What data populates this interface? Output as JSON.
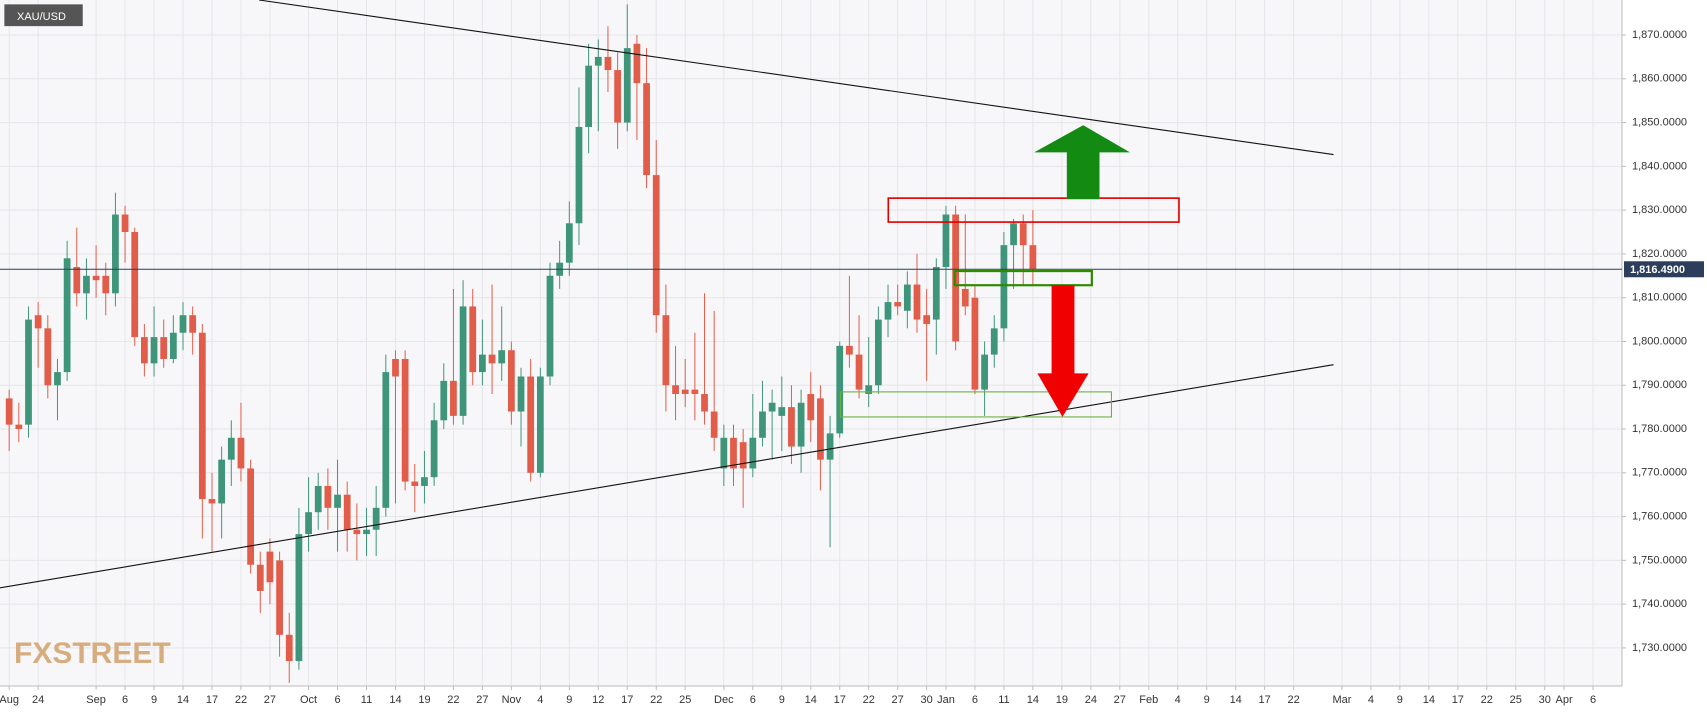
{
  "chart_data": {
    "type": "candlestick",
    "title": "XAU/USD",
    "watermark": "FXSTREET",
    "up_color": "#3f957a",
    "down_color": "#e25c4a",
    "grid": true,
    "x": [
      0,
      1,
      2,
      3,
      4,
      5,
      6,
      7,
      8,
      9,
      10,
      11,
      12,
      13,
      14,
      15,
      16,
      17,
      18,
      19,
      20,
      21,
      22,
      23,
      24,
      25,
      26,
      27,
      28,
      29,
      30,
      31,
      32,
      33,
      34,
      35,
      36,
      37,
      38,
      39,
      40,
      41,
      42,
      43,
      44,
      45,
      46,
      47,
      48,
      49,
      50,
      51,
      52,
      53,
      54,
      55,
      56,
      57,
      58,
      59,
      60,
      61,
      62,
      63,
      64,
      65,
      66,
      67,
      68,
      69,
      70,
      71,
      72,
      73,
      74,
      75,
      76,
      77,
      78,
      79,
      80,
      81,
      82,
      83,
      84,
      85,
      86,
      87,
      88,
      89,
      90,
      91,
      92,
      93,
      94,
      95,
      96,
      97,
      98,
      99,
      100,
      101,
      102,
      103,
      104,
      105,
      106
    ],
    "open": [
      1787,
      1781,
      1781,
      1806,
      1803,
      1790,
      1793,
      1817,
      1811,
      1815,
      1815,
      1811,
      1829,
      1825,
      1801,
      1795,
      1801,
      1796,
      1802,
      1806,
      1802,
      1764,
      1763,
      1773,
      1778,
      1771,
      1749,
      1752,
      1750,
      1733,
      1727,
      1756,
      1761,
      1767,
      1762,
      1765,
      1757,
      1756,
      1757,
      1762,
      1796,
      1796,
      1768,
      1767,
      1769,
      1782,
      1791,
      1783,
      1808,
      1793,
      1797,
      1795,
      1798,
      1784,
      1792,
      1770,
      1792,
      1815,
      1818,
      1827,
      1849,
      1863,
      1865,
      1862,
      1850,
      1868,
      1859,
      1838,
      1806,
      1790,
      1789,
      1789,
      1788,
      1784,
      1771,
      1778,
      1777,
      1771,
      1778,
      1784,
      1783,
      1785,
      1776,
      1788,
      1787,
      1773,
      1779,
      1799,
      1797,
      1788,
      1790,
      1805,
      1809,
      1807,
      1813,
      1806,
      1805,
      1817,
      1829,
      1812,
      1810,
      1789,
      1797,
      1803,
      1822,
      1827,
      1822
    ],
    "high": [
      1789,
      1786,
      1808,
      1809,
      1806,
      1796,
      1823,
      1826,
      1819,
      1822,
      1818,
      1834,
      1831,
      1826,
      1804,
      1808,
      1805,
      1806,
      1809,
      1808,
      1804,
      1770,
      1776,
      1782,
      1786,
      1773,
      1752,
      1755,
      1752,
      1738,
      1762,
      1769,
      1770,
      1771,
      1773,
      1768,
      1763,
      1762,
      1767,
      1797,
      1798,
      1798,
      1772,
      1775,
      1786,
      1795,
      1812,
      1814,
      1812,
      1805,
      1813,
      1808,
      1800,
      1794,
      1796,
      1794,
      1818,
      1823,
      1832,
      1858,
      1868,
      1869,
      1872,
      1866,
      1877,
      1870,
      1867,
      1846,
      1813,
      1799,
      1796,
      1802,
      1811,
      1807,
      1781,
      1781,
      1780,
      1788,
      1791,
      1789,
      1792,
      1790,
      1789,
      1793,
      1790,
      1783,
      1800,
      1815,
      1806,
      1801,
      1808,
      1813,
      1813,
      1816,
      1820,
      1812,
      1819,
      1831,
      1831,
      1829,
      1813,
      1800,
      1806,
      1825,
      1828,
      1829,
      1830
    ],
    "low": [
      1775,
      1777,
      1778,
      1794,
      1787,
      1782,
      1791,
      1808,
      1805,
      1810,
      1806,
      1808,
      1818,
      1799,
      1792,
      1792,
      1794,
      1795,
      1798,
      1797,
      1755,
      1752,
      1755,
      1767,
      1768,
      1747,
      1738,
      1740,
      1728,
      1722,
      1725,
      1752,
      1757,
      1757,
      1752,
      1752,
      1750,
      1751,
      1751,
      1760,
      1763,
      1766,
      1761,
      1763,
      1767,
      1780,
      1781,
      1781,
      1790,
      1790,
      1788,
      1791,
      1781,
      1776,
      1768,
      1769,
      1790,
      1812,
      1815,
      1822,
      1843,
      1848,
      1857,
      1844,
      1848,
      1846,
      1835,
      1802,
      1784,
      1782,
      1785,
      1782,
      1781,
      1775,
      1767,
      1767,
      1762,
      1769,
      1776,
      1773,
      1775,
      1772,
      1770,
      1777,
      1766,
      1753,
      1778,
      1794,
      1787,
      1785,
      1788,
      1801,
      1806,
      1803,
      1802,
      1791,
      1797,
      1812,
      1798,
      1806,
      1788,
      1783,
      1794,
      1800,
      1812,
      1813,
      1813
    ],
    "close": [
      1781,
      1780,
      1805,
      1803,
      1790,
      1793,
      1819,
      1811,
      1815,
      1814,
      1811,
      1829,
      1825,
      1801,
      1795,
      1801,
      1796,
      1802,
      1806,
      1802,
      1764,
      1763,
      1773,
      1778,
      1771,
      1749,
      1743,
      1745,
      1733,
      1727,
      1756,
      1761,
      1767,
      1762,
      1765,
      1757,
      1756,
      1757,
      1762,
      1793,
      1792,
      1768,
      1767,
      1769,
      1782,
      1791,
      1783,
      1808,
      1793,
      1797,
      1795,
      1798,
      1784,
      1792,
      1770,
      1792,
      1815,
      1818,
      1827,
      1849,
      1863,
      1865,
      1862,
      1850,
      1867,
      1859,
      1838,
      1806,
      1790,
      1788,
      1788,
      1788,
      1784,
      1778,
      1778,
      1771,
      1771,
      1778,
      1784,
      1786,
      1785,
      1776,
      1786,
      1782,
      1773,
      1779,
      1799,
      1797,
      1789,
      1790,
      1805,
      1809,
      1808,
      1813,
      1805,
      1804,
      1817,
      1829,
      1800,
      1808,
      1789,
      1797,
      1803,
      1822,
      1827,
      1822,
      1816.49
    ],
    "last_price": {
      "value": 1816.49,
      "label": "1,816.4900"
    },
    "xlim": [
      -0.95,
      167
    ],
    "xticks": [
      {
        "value": 0,
        "label": "Aug"
      },
      {
        "value": 3,
        "label": "24"
      },
      {
        "value": 9,
        "label": "Sep"
      },
      {
        "value": 12,
        "label": "6"
      },
      {
        "value": 15,
        "label": "9"
      },
      {
        "value": 18,
        "label": "14"
      },
      {
        "value": 21,
        "label": "17"
      },
      {
        "value": 24,
        "label": "22"
      },
      {
        "value": 27,
        "label": "27"
      },
      {
        "value": 31,
        "label": "Oct"
      },
      {
        "value": 34,
        "label": "6"
      },
      {
        "value": 37,
        "label": "11"
      },
      {
        "value": 40,
        "label": "14"
      },
      {
        "value": 43,
        "label": "19"
      },
      {
        "value": 46,
        "label": "22"
      },
      {
        "value": 49,
        "label": "27"
      },
      {
        "value": 52,
        "label": "Nov"
      },
      {
        "value": 55,
        "label": "4"
      },
      {
        "value": 58,
        "label": "9"
      },
      {
        "value": 61,
        "label": "12"
      },
      {
        "value": 64,
        "label": "17"
      },
      {
        "value": 67,
        "label": "22"
      },
      {
        "value": 70,
        "label": "25"
      },
      {
        "value": 74,
        "label": "Dec"
      },
      {
        "value": 77,
        "label": "6"
      },
      {
        "value": 80,
        "label": "9"
      },
      {
        "value": 83,
        "label": "14"
      },
      {
        "value": 86,
        "label": "17"
      },
      {
        "value": 89,
        "label": "22"
      },
      {
        "value": 92,
        "label": "27"
      },
      {
        "value": 95,
        "label": "30"
      },
      {
        "value": 97,
        "label": "Jan"
      },
      {
        "value": 100,
        "label": "6"
      },
      {
        "value": 103,
        "label": "11"
      },
      {
        "value": 106,
        "label": "14"
      },
      {
        "value": 109,
        "label": "19"
      },
      {
        "value": 112,
        "label": "24"
      },
      {
        "value": 115,
        "label": "27"
      },
      {
        "value": 118,
        "label": "Feb"
      },
      {
        "value": 121,
        "label": "4"
      },
      {
        "value": 124,
        "label": "9"
      },
      {
        "value": 127,
        "label": "14"
      },
      {
        "value": 130,
        "label": "17"
      },
      {
        "value": 133,
        "label": "22"
      },
      {
        "value": 138,
        "label": "Mar"
      },
      {
        "value": 141,
        "label": "4"
      },
      {
        "value": 144,
        "label": "9"
      },
      {
        "value": 147,
        "label": "14"
      },
      {
        "value": 150,
        "label": "17"
      },
      {
        "value": 153,
        "label": "22"
      },
      {
        "value": 156,
        "label": "25"
      },
      {
        "value": 159,
        "label": "30"
      },
      {
        "value": 161,
        "label": "Apr"
      },
      {
        "value": 164,
        "label": "6"
      }
    ],
    "ylim": [
      1721.3,
      1878
    ],
    "yticks": [
      {
        "value": 1730,
        "label": "1,730.0000"
      },
      {
        "value": 1740,
        "label": "1,740.0000"
      },
      {
        "value": 1750,
        "label": "1,750.0000"
      },
      {
        "value": 1760,
        "label": "1,760.0000"
      },
      {
        "value": 1770,
        "label": "1,770.0000"
      },
      {
        "value": 1780,
        "label": "1,780.0000"
      },
      {
        "value": 1790,
        "label": "1,790.0000"
      },
      {
        "value": 1800,
        "label": "1,800.0000"
      },
      {
        "value": 1810,
        "label": "1,810.0000"
      },
      {
        "value": 1820,
        "label": "1,820.0000"
      },
      {
        "value": 1830,
        "label": "1,830.0000"
      },
      {
        "value": 1840,
        "label": "1,840.0000"
      },
      {
        "value": 1850,
        "label": "1,850.0000"
      },
      {
        "value": 1860,
        "label": "1,860.0000"
      },
      {
        "value": 1870,
        "label": "1,870.0000"
      }
    ]
  }
}
